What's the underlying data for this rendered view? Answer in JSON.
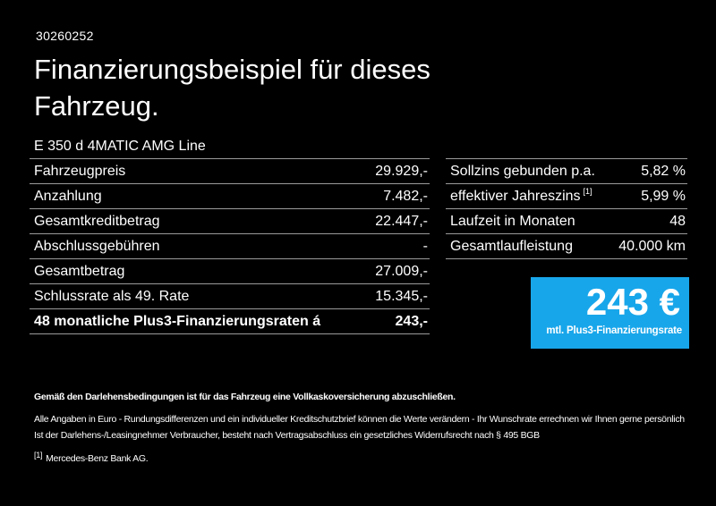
{
  "page": {
    "background": "#000000",
    "id_number": "30260252",
    "title": "Finanzierungsbeispiel für dieses Fahrzeug.",
    "vehicle_model": "E 350 d 4MATIC AMG Line"
  },
  "finance_table": {
    "rows": [
      {
        "label": "Fahrzeugpreis",
        "value": "29.929,-"
      },
      {
        "label": "Anzahlung",
        "value": "7.482,-"
      },
      {
        "label": "Gesamtkreditbetrag",
        "value": "22.447,-"
      },
      {
        "label": "Abschlussgebühren",
        "value": "-"
      },
      {
        "label": "Gesamtbetrag",
        "value": "27.009,-"
      },
      {
        "label": "Schlussrate als 49. Rate",
        "value": "15.345,-"
      },
      {
        "label": "48 monatliche Plus3-Finanzierungsraten á",
        "value": "243,-"
      }
    ]
  },
  "conditions_table": {
    "rows": [
      {
        "label": "Sollzins gebunden p.a.",
        "footnote": "",
        "value": "5,82 %"
      },
      {
        "label": "effektiver Jahreszins",
        "footnote": "[1]",
        "value": "5,99 %"
      },
      {
        "label": "Laufzeit in Monaten",
        "footnote": "",
        "value": "48"
      },
      {
        "label": "Gesamtlaufleistung",
        "footnote": "",
        "value": "40.000 km"
      }
    ]
  },
  "rate_box": {
    "background": "#18a6ea",
    "amount": "243 €",
    "caption": "mtl. Plus3-Finanzierungsrate"
  },
  "footer": {
    "line_bold": "Gemäß den Darlehensbedingungen ist für das Fahrzeug eine Vollkaskoversicherung abzuschließen.",
    "line_2": "Alle Angaben in Euro - Rundungsdifferenzen und ein individueller Kreditschutzbrief können die Werte verändern - Ihr Wunschrate errechnen wir Ihnen gerne persönlich",
    "line_3": "Ist der Darlehens-/Leasingnehmer Verbraucher, besteht nach Vertragsabschluss ein gesetzliches Widerrufsrecht nach § 495 BGB",
    "footnote_marker": "[1]",
    "footnote_text": "Mercedes-Benz Bank AG."
  }
}
